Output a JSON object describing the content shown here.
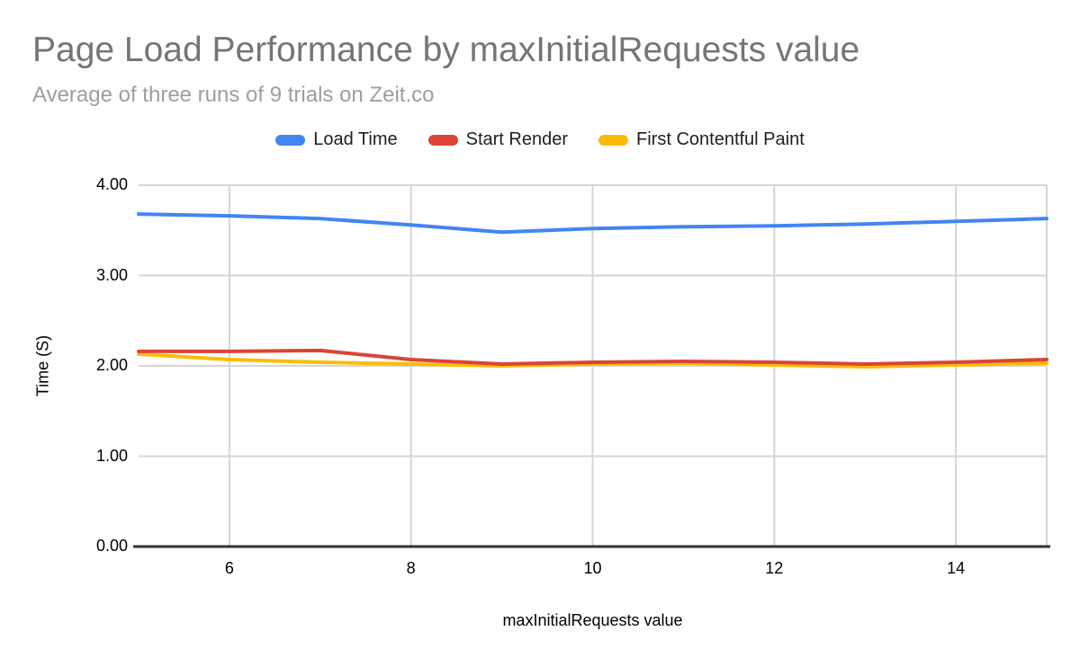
{
  "chart_data": {
    "type": "line",
    "title": "Page Load Performance by maxInitialRequests value",
    "subtitle": "Average of three runs of 9 trials on Zeit.co",
    "xlabel": "maxInitialRequests value",
    "ylabel": "Time (S)",
    "x": [
      5,
      6,
      7,
      8,
      9,
      10,
      11,
      12,
      13,
      14,
      15
    ],
    "series": [
      {
        "name": "Load Time",
        "color": "#4285F4",
        "values": [
          3.68,
          3.66,
          3.63,
          3.56,
          3.48,
          3.52,
          3.54,
          3.55,
          3.57,
          3.6,
          3.63
        ]
      },
      {
        "name": "Start Render",
        "color": "#DB4437",
        "values": [
          2.16,
          2.16,
          2.17,
          2.07,
          2.02,
          2.04,
          2.05,
          2.04,
          2.02,
          2.04,
          2.07
        ]
      },
      {
        "name": "First Contentful Paint",
        "color": "#FBBC04",
        "values": [
          2.13,
          2.07,
          2.04,
          2.02,
          2.0,
          2.02,
          2.03,
          2.01,
          1.99,
          2.01,
          2.03
        ]
      }
    ],
    "z_order": [
      0,
      2,
      1
    ],
    "xlim": [
      5,
      15
    ],
    "ylim": [
      0,
      4
    ],
    "x_ticks": [
      6,
      8,
      10,
      12,
      14
    ],
    "x_tick_labels": [
      "6",
      "8",
      "10",
      "12",
      "14"
    ],
    "y_ticks": [
      0,
      1,
      2,
      3,
      4
    ],
    "y_tick_labels": [
      "0.00",
      "1.00",
      "2.00",
      "3.00",
      "4.00"
    ],
    "grid": true,
    "legend_position": "top",
    "colors": {
      "gridline": "#d6d6d6",
      "axis_baseline": "#333333",
      "title_text": "#757575",
      "subtitle_text": "#9e9e9e",
      "tick_text": "#000000"
    }
  }
}
